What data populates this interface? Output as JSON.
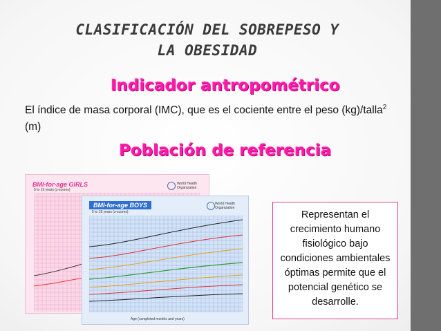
{
  "slide": {
    "title_line1": "CLASIFICACIÓN DEL SOBREPESO Y",
    "title_line2": "LA OBESIDAD",
    "heading1": "Indicador antropométrico",
    "body_main": "El índice de masa corporal (IMC), que es el cociente entre el peso (kg)/talla",
    "body_sup": "2",
    "body_tail": " (m)",
    "heading2": "Población de referencia",
    "callout": "Representan el crecimiento humano fisiológico bajo condiciones ambientales óptimas permite que el potencial genético se desarrolle."
  },
  "girls_chart": {
    "title": "BMI-for-age  GIRLS",
    "subtitle": "5 to 19 years (z-scores)",
    "org": "World Health Organization",
    "color": "#e3338b"
  },
  "boys_chart": {
    "title": "BMI-for-age  BOYS",
    "subtitle": "5 to 19 years (z-scores)",
    "org": "World Health Organization",
    "xlabel": "Age (completed months and years)",
    "color": "#2f6fd1"
  },
  "colors": {
    "accent": "#ff1aa8",
    "sidebar": "#6f6f6f"
  }
}
